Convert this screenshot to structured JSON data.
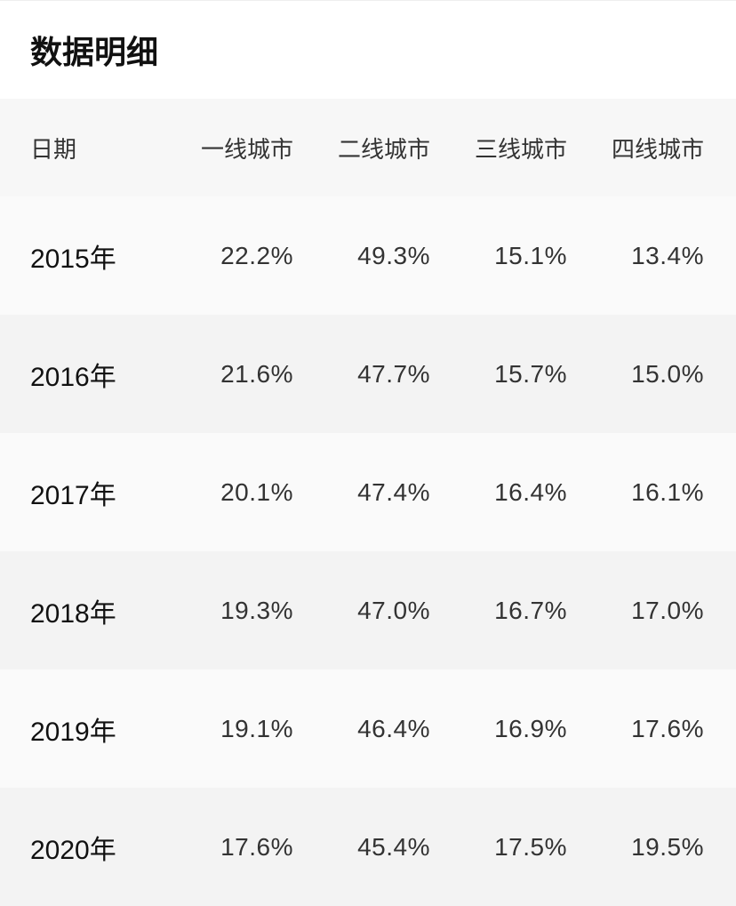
{
  "title": "数据明细",
  "table": {
    "headers": [
      "日期",
      "一线城市",
      "二线城市",
      "三线城市",
      "四线城市"
    ],
    "rows": [
      [
        "2015年",
        "22.2%",
        "49.3%",
        "15.1%",
        "13.4%"
      ],
      [
        "2016年",
        "21.6%",
        "47.7%",
        "15.7%",
        "15.0%"
      ],
      [
        "2017年",
        "20.1%",
        "47.4%",
        "16.4%",
        "16.1%"
      ],
      [
        "2018年",
        "19.3%",
        "47.0%",
        "16.7%",
        "17.0%"
      ],
      [
        "2019年",
        "19.1%",
        "46.4%",
        "16.9%",
        "17.6%"
      ],
      [
        "2020年",
        "17.6%",
        "45.4%",
        "17.5%",
        "19.5%"
      ]
    ]
  },
  "colors": {
    "header_bg": "#f7f7f7",
    "row_bg_odd": "#fafafa",
    "row_bg_even": "#f3f3f3",
    "text": "#1a1a1a"
  }
}
